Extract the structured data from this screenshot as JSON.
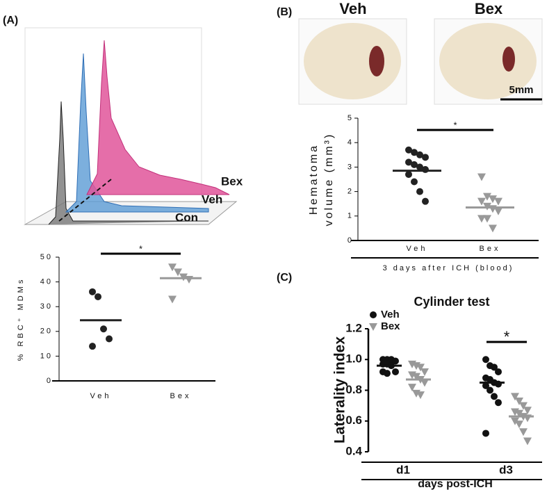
{
  "panel_labels": [
    "(A)",
    "(B)",
    "(C)"
  ],
  "flow_histogram": {
    "labels": [
      "Bex",
      "Veh",
      "Con"
    ]
  },
  "images": {
    "labels": [
      "Veh",
      "Bex"
    ],
    "scale_bar": "5mm"
  },
  "chart_data": [
    {
      "type": "dotplot",
      "ylabel": "% RBC⁺ MDMs",
      "categories": [
        "Veh",
        "Bex"
      ],
      "ylim": [
        0,
        50
      ],
      "yticks": [
        0,
        10,
        20,
        30,
        40,
        50
      ],
      "series": [
        {
          "color": "#222222",
          "marker": "circle",
          "values": [
            [
              36,
              34,
              21,
              17,
              14
            ],
            null
          ],
          "means": [
            24.5,
            null
          ]
        },
        {
          "color": "#999999",
          "marker": "triangle",
          "values": [
            null,
            [
              46,
              44,
              42,
              41,
              33
            ]
          ],
          "means": [
            null,
            41.5
          ]
        }
      ],
      "annotations": [
        "*"
      ]
    },
    {
      "type": "dotplot",
      "ylabel": [
        "Hematoma",
        "volume (mm³)"
      ],
      "xlabel": "3 days after ICH (blood)",
      "categories": [
        "Veh",
        "Bex"
      ],
      "ylim": [
        0,
        5
      ],
      "yticks": [
        0,
        1,
        2,
        3,
        4,
        5
      ],
      "series": [
        {
          "color": "#222222",
          "marker": "circle",
          "values": [
            [
              3.7,
              3.6,
              3.5,
              3.4,
              3.2,
              3.1,
              3.0,
              2.9,
              2.7,
              2.4,
              2.0,
              1.6
            ],
            null
          ],
          "means": [
            2.85,
            null
          ]
        },
        {
          "color": "#999999",
          "marker": "triangle",
          "values": [
            null,
            [
              2.6,
              1.8,
              1.7,
              1.6,
              1.6,
              1.4,
              1.3,
              1.2,
              0.9,
              0.9,
              0.5
            ]
          ],
          "means": [
            null,
            1.35
          ]
        }
      ],
      "annotations": [
        "*"
      ]
    },
    {
      "type": "dotplot",
      "title": "Cylinder test",
      "ylabel": "Laterality index",
      "xlabel": "days post-ICH",
      "categories": [
        "d1",
        "d3"
      ],
      "ylim": [
        0.4,
        1.2
      ],
      "yticks": [
        0.4,
        0.6,
        0.8,
        {
          "value": 1,
          "label": "1.0"
        },
        1.2
      ],
      "series": [
        {
          "name": "Veh",
          "color": "#111111",
          "marker": "circle",
          "values": [
            [
              1.0,
              1.0,
              1.0,
              0.99,
              0.97,
              0.97,
              0.96,
              0.92,
              0.92,
              0.91
            ],
            [
              1.0,
              0.96,
              0.95,
              0.92,
              0.88,
              0.87,
              0.85,
              0.84,
              0.83,
              0.8,
              0.76,
              0.72,
              0.52
            ]
          ],
          "means": [
            0.96,
            0.85
          ]
        },
        {
          "name": "Bex",
          "color": "#999999",
          "marker": "triangle",
          "values": [
            [
              0.97,
              0.96,
              0.95,
              0.92,
              0.9,
              0.89,
              0.87,
              0.85,
              0.82,
              0.78,
              0.77
            ],
            [
              0.76,
              0.73,
              0.7,
              0.67,
              0.66,
              0.65,
              0.63,
              0.62,
              0.6,
              0.58,
              0.53,
              0.47
            ]
          ],
          "means": [
            0.87,
            0.63
          ]
        }
      ],
      "annotations": [
        "*"
      ]
    }
  ]
}
